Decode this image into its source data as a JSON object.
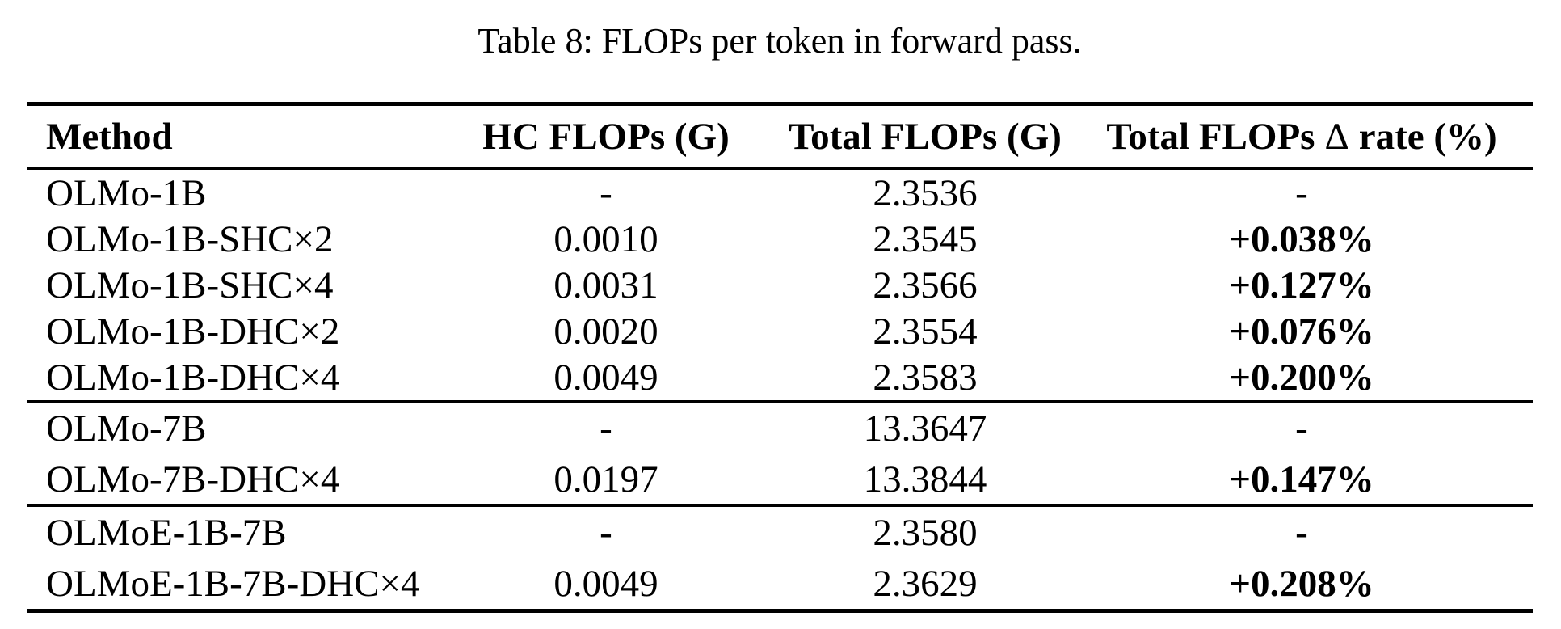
{
  "caption": "Table 8: FLOPs per token in forward pass.",
  "table": {
    "header": {
      "method": "Method",
      "hc_flops": "HC FLOPs (G)",
      "total_flops": "Total FLOPs (G)",
      "delta_prefix": "Total FLOPs",
      "delta_symbol": "Δ",
      "delta_suffix": "rate (%)"
    },
    "groups": [
      {
        "rows": [
          {
            "method": "OLMo-1B",
            "hc_flops": "-",
            "total_flops": "2.3536",
            "delta_rate": "-"
          },
          {
            "method": "OLMo-1B-SHC×2",
            "hc_flops": "0.0010",
            "total_flops": "2.3545",
            "delta_rate": "+0.038%"
          },
          {
            "method": "OLMo-1B-SHC×4",
            "hc_flops": "0.0031",
            "total_flops": "2.3566",
            "delta_rate": "+0.127%"
          },
          {
            "method": "OLMo-1B-DHC×2",
            "hc_flops": "0.0020",
            "total_flops": "2.3554",
            "delta_rate": "+0.076%"
          },
          {
            "method": "OLMo-1B-DHC×4",
            "hc_flops": "0.0049",
            "total_flops": "2.3583",
            "delta_rate": "+0.200%"
          }
        ]
      },
      {
        "rows": [
          {
            "method": "OLMo-7B",
            "hc_flops": "-",
            "total_flops": "13.3647",
            "delta_rate": "-"
          },
          {
            "method": "OLMo-7B-DHC×4",
            "hc_flops": "0.0197",
            "total_flops": "13.3844",
            "delta_rate": "+0.147%"
          }
        ]
      },
      {
        "rows": [
          {
            "method": "OLMoE-1B-7B",
            "hc_flops": "-",
            "total_flops": "2.3580",
            "delta_rate": "-"
          },
          {
            "method": "OLMoE-1B-7B-DHC×4",
            "hc_flops": "0.0049",
            "total_flops": "2.3629",
            "delta_rate": "+0.208%"
          }
        ]
      }
    ]
  },
  "colors": {
    "text": "#000000",
    "background": "#ffffff"
  }
}
